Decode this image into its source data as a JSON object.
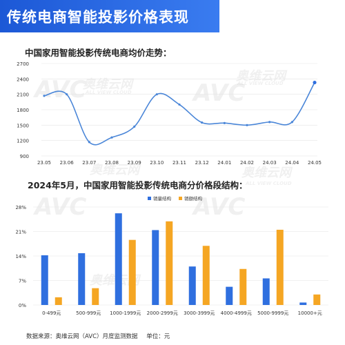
{
  "banner": {
    "title": "传统电商智能投影价格表现"
  },
  "watermark": {
    "logo_text": "AVC",
    "cn_text": "奥维云网",
    "en_text": "ALL VIEW CLOUD"
  },
  "line_section": {
    "title": "中国家用智能投影传统电商均价走势："
  },
  "bar_section": {
    "title": "2024年5月，中国家用智能投影传统电商分价格段结构："
  },
  "footer": {
    "source": "数据来源：奥维云网（AVC）月度监测数据",
    "unit": "单位：元"
  },
  "colors": {
    "banner": "#2563e0",
    "line": "#4a86d8",
    "volume": "#2f6fdf",
    "revenue": "#f5a623",
    "grid": "#e4e4e4"
  },
  "chart_data": [
    {
      "type": "line",
      "title": "中国家用智能投影传统电商均价走势：",
      "x": [
        "23.05",
        "23.06",
        "23.07",
        "23.08",
        "23.09",
        "23.10",
        "23.11",
        "23.12",
        "24.01",
        "24.02",
        "24.03",
        "24.04",
        "24.05"
      ],
      "y_ticks": [
        "900",
        "1200",
        "1500",
        "1800",
        "2100",
        "2400",
        "2700"
      ],
      "ylim": [
        900,
        2700
      ],
      "series": [
        {
          "values": [
            2070,
            2100,
            1170,
            1260,
            1470,
            2100,
            1900,
            1550,
            1540,
            1500,
            1560,
            1560,
            2330
          ]
        }
      ],
      "grid": "horizontal"
    },
    {
      "type": "bar",
      "title": "2024年5月，中国家用智能投影传统电商分价格段结构：",
      "categories": [
        "0-499元",
        "500-999元",
        "1000-1999元",
        "2000-2999元",
        "3000-3999元",
        "4000-4999元",
        "5000-9999元",
        "10000+元"
      ],
      "y_ticks": [
        "0%",
        "7%",
        "14%",
        "21%",
        "28%"
      ],
      "ylim": [
        0,
        28
      ],
      "legend_position": "top-center",
      "series": [
        {
          "name": "销量结构",
          "values": [
            14.2,
            14.8,
            26.2,
            21.4,
            11.0,
            5.2,
            7.6,
            0.7
          ]
        },
        {
          "name": "销额结构",
          "values": [
            2.2,
            4.8,
            18.6,
            23.9,
            16.9,
            10.3,
            21.5,
            3.0
          ]
        }
      ],
      "grid": "horizontal"
    }
  ]
}
